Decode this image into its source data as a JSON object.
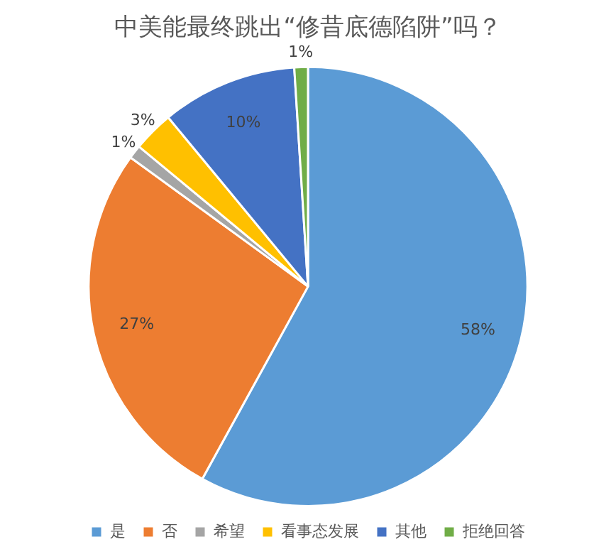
{
  "chart_data": {
    "type": "pie",
    "title": "中美能最终跳出“修昔底德陷阱”吗？",
    "categories": [
      "是",
      "否",
      "希望",
      "看事态发展",
      "其他",
      "拒绝回答"
    ],
    "values": [
      58,
      27,
      1,
      3,
      10,
      1
    ],
    "colors": [
      "#5b9bd5",
      "#ed7d31",
      "#a5a5a5",
      "#ffc000",
      "#4472c4",
      "#70ad47"
    ],
    "value_labels": [
      "58%",
      "27%",
      "1%",
      "3%",
      "10%",
      "1%"
    ],
    "legend": "bottom"
  }
}
